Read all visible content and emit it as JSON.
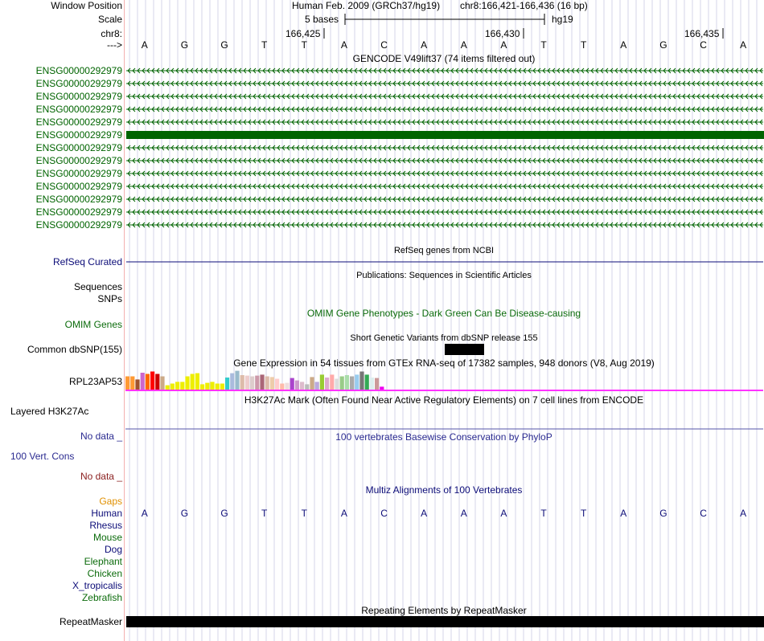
{
  "colors": {
    "green": "#006400",
    "navy": "#0c0c78",
    "rpl": "#101010",
    "grid": "#d5d5e8",
    "divider": "#f4b0b0",
    "pink": "#ff33ff",
    "blueline": "#5555aa",
    "nodata_blue": "#2a2a90",
    "nodata_red": "#8b2020",
    "gaps": "#e09000",
    "dkgreen": "#0b6b0b"
  },
  "header": {
    "window_position_label": "Window Position",
    "assembly_text": "Human Feb. 2009 (GRCh37/hg19)",
    "position_text": "chr8:166,421-166,436 (16 bp)",
    "scale_label": "Scale",
    "scale_text": "5 bases",
    "scale_db": "hg19",
    "chrom_label": "chr8:",
    "arrow_label": "--->",
    "coords": [
      "166,425",
      "166,430",
      "166,435"
    ]
  },
  "bases": [
    "A",
    "G",
    "G",
    "T",
    "T",
    "A",
    "C",
    "A",
    "A",
    "A",
    "T",
    "T",
    "A",
    "G",
    "C",
    "A"
  ],
  "gencode": {
    "title": "GENCODE V49lift37 (74 items filtered out)",
    "items": [
      "ENSG00000292979",
      "ENSG00000292979",
      "ENSG00000292979",
      "ENSG00000292979",
      "ENSG00000292979",
      "ENSG00000292979",
      "ENSG00000292979",
      "ENSG00000292979",
      "ENSG00000292979",
      "ENSG00000292979",
      "ENSG00000292979",
      "ENSG00000292979",
      "ENSG00000292979"
    ]
  },
  "refseq": {
    "title": "RefSeq genes from NCBI",
    "label": "RefSeq Curated"
  },
  "publications": {
    "title": "Publications: Sequences in Scientific Articles",
    "labels": [
      "Sequences",
      "SNPs"
    ]
  },
  "omim": {
    "title": "OMIM Gene Phenotypes - Dark Green Can Be Disease-causing",
    "label": "OMIM Genes"
  },
  "dbsnp": {
    "title": "Short Genetic Variants from dbSNP release 155",
    "label": "Common dbSNP(155)"
  },
  "gtex": {
    "title": "Gene Expression in 54 tissues from GTEx RNA-seq of 17382 samples, 948 donors (V8, Aug 2019)",
    "label": "RPL23AP53",
    "bar_colors": [
      "#ff9933",
      "#ff9933",
      "#a0522d",
      "#cc66cc",
      "#ff6600",
      "#ff0000",
      "#cc0000",
      "#ccaa88",
      "#eeee00",
      "#eeee00",
      "#eeee00",
      "#eeee00",
      "#eeee00",
      "#eeee00",
      "#eeee00",
      "#eeee00",
      "#eeee00",
      "#eeee00",
      "#eeee00",
      "#eeee00",
      "#33cccc",
      "#aabbdd",
      "#99bbcc",
      "#ddbbaa",
      "#eecccc",
      "#ddcccc",
      "#cc99aa",
      "#aa6677",
      "#ddbbaa",
      "#eeccaa",
      "#ffcccc",
      "#ffbbaa",
      "#eedddd",
      "#aa44cc",
      "#cc99cc",
      "#ddbbcc",
      "#bbbbbb",
      "#ccaa88",
      "#bbaadd",
      "#99cc33",
      "#ddaacc",
      "#ffaaaa",
      "#dddddd",
      "#99cc88",
      "#aaddaa",
      "#aaaaaa",
      "#99ccee",
      "#777777",
      "#33aa55",
      "#ddeeee",
      "#cc9999",
      "#ee00ee"
    ],
    "bar_values": [
      0.55,
      0.55,
      0.42,
      0.7,
      0.65,
      0.75,
      0.65,
      0.55,
      0.18,
      0.25,
      0.32,
      0.32,
      0.55,
      0.65,
      0.68,
      0.22,
      0.28,
      0.32,
      0.25,
      0.25,
      0.5,
      0.68,
      0.78,
      0.6,
      0.58,
      0.55,
      0.58,
      0.62,
      0.55,
      0.52,
      0.45,
      0.25,
      0.28,
      0.48,
      0.38,
      0.32,
      0.22,
      0.52,
      0.32,
      0.62,
      0.5,
      0.62,
      0.45,
      0.55,
      0.6,
      0.55,
      0.62,
      0.75,
      0.62,
      0.5,
      0.48,
      0.12
    ]
  },
  "h3k27ac": {
    "title": "H3K27Ac Mark (Often Found Near Active Regulatory Elements) on 7 cell lines from ENCODE",
    "label": "Layered H3K27Ac"
  },
  "phylop": {
    "title": "100 vertebrates Basewise Conservation by PhyloP",
    "nodata_label": "No data _",
    "label": "100 Vert. Cons",
    "nodata_label2": "No data _"
  },
  "multiz": {
    "title": "Multiz Alignments of 100 Vertebrates",
    "species": [
      "Gaps",
      "Human",
      "Rhesus",
      "Mouse",
      "Dog",
      "Elephant",
      "Chicken",
      "X_tropicalis",
      "Zebrafish"
    ]
  },
  "repeatmasker": {
    "title": "Repeating Elements by RepeatMasker",
    "label": "RepeatMasker"
  }
}
